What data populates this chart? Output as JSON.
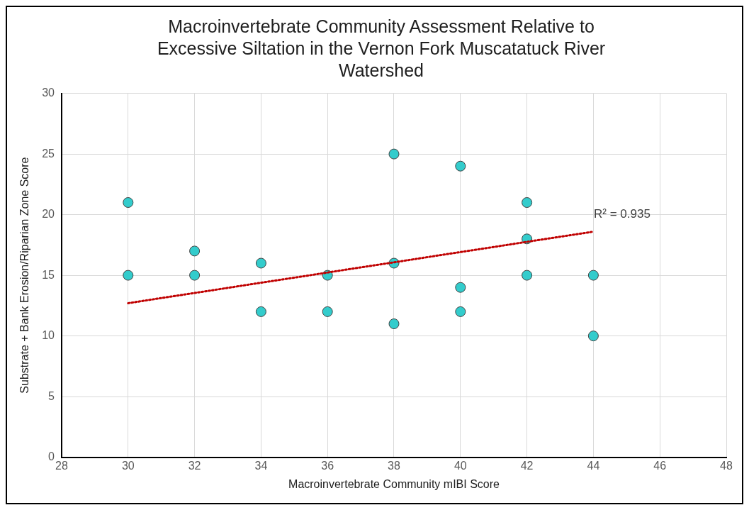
{
  "chart_data": {
    "type": "scatter",
    "title": "Macroinvertebrate Community Assessment Relative to Excessive Siltation in the Vernon Fork Muscatatuck River Watershed",
    "xlabel": "Macroinvertebrate Community mIBI Score",
    "ylabel": "Substrate + Bank Erosion/Riparian Zone Score",
    "x": [
      30,
      30,
      32,
      32,
      34,
      34,
      36,
      36,
      38,
      38,
      38,
      40,
      40,
      40,
      42,
      42,
      42,
      44,
      44
    ],
    "series": [
      {
        "color": "#33cccc",
        "values": [
          21,
          15,
          17,
          15,
          16,
          12,
          15,
          12,
          25,
          16,
          11,
          24,
          14,
          12,
          21,
          18,
          15,
          15,
          10
        ]
      },
      {
        "type": "line",
        "color": "#c00000",
        "line_style": "dotted",
        "marker": "none",
        "x": [
          30,
          44
        ],
        "values": [
          12.7,
          18.6
        ]
      }
    ],
    "annotations": [
      "R² = 0.935"
    ],
    "xlim": [
      28,
      48
    ],
    "xticks": [
      28,
      30,
      32,
      34,
      36,
      38,
      40,
      42,
      44,
      46,
      48
    ],
    "ylim": [
      0,
      30
    ],
    "yticks": [
      0,
      5,
      10,
      15,
      20,
      25,
      30
    ],
    "grid": true,
    "legend": false,
    "marker": "circle"
  }
}
